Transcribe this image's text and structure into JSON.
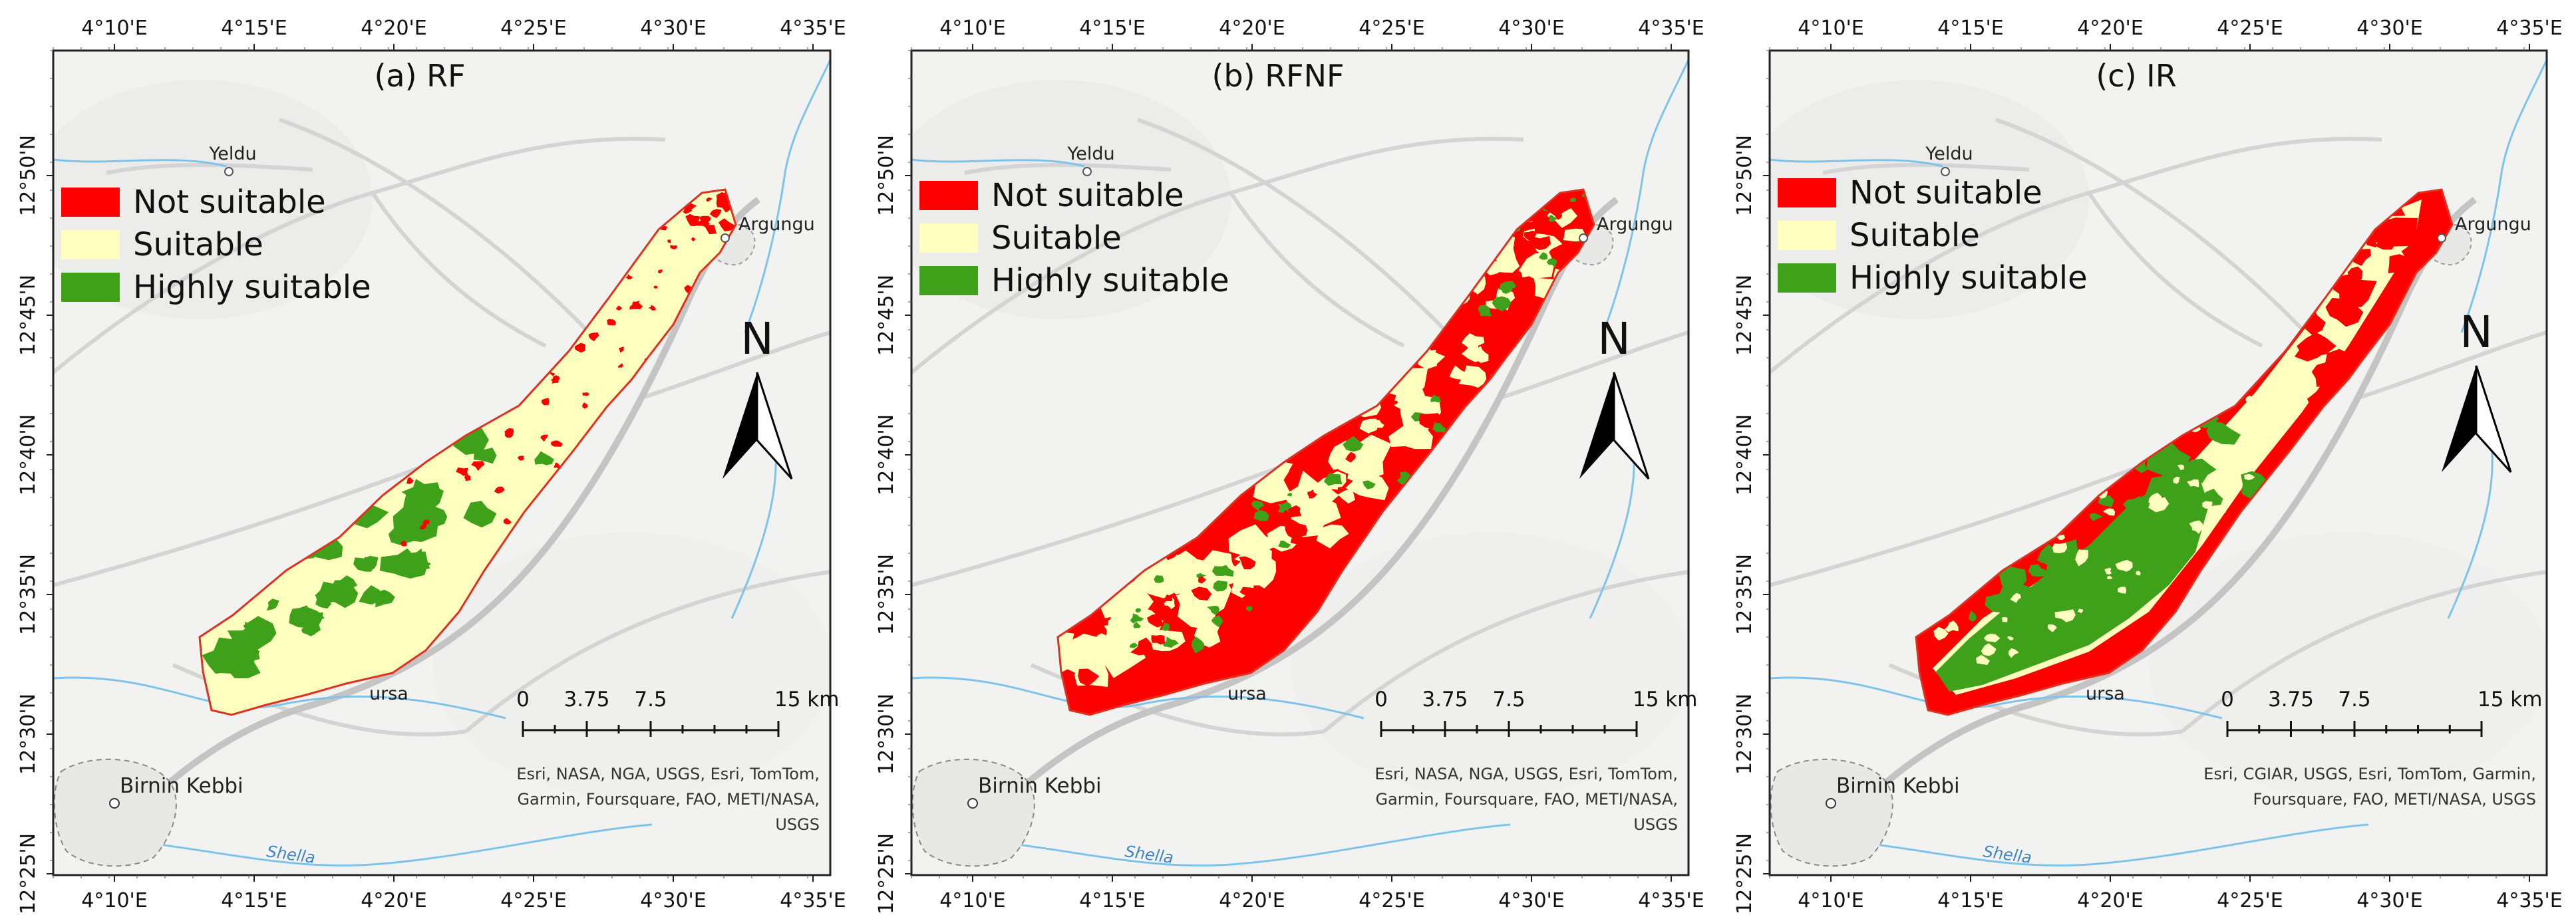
{
  "colors": {
    "not_suitable": "#ff0000",
    "suitable": "#ffffc0",
    "highly_suitable": "#3fa11a",
    "basemap": "#f2f2f0",
    "road": "#d4d4d4",
    "river": "#7ec3ea"
  },
  "axes": {
    "top_ticks": [
      "4°10'E",
      "4°15'E",
      "4°20'E",
      "4°25'E",
      "4°30'E",
      "4°35'E"
    ],
    "left_ticks": [
      "12°50'N",
      "12°45'N",
      "12°40'N",
      "12°35'N",
      "12°30'N",
      "12°25'N"
    ]
  },
  "legend": [
    {
      "label": "Not suitable",
      "color": "#ff0000"
    },
    {
      "label": "Suitable",
      "color": "#ffffc0"
    },
    {
      "label": "Highly suitable",
      "color": "#3fa11a"
    }
  ],
  "places": {
    "yeldu": "Yeldu",
    "argungu": "Argungu",
    "birnin_kebbi": "Birnin Kebbi",
    "ursa": "ursa",
    "river": "Shella"
  },
  "north_label": "N",
  "scale_bar": {
    "labels": [
      "0",
      "3.75",
      "7.5",
      "15 km"
    ]
  },
  "panels": [
    {
      "title": "(a) RF",
      "dominant": "suitable",
      "attribution": [
        "Esri, NASA, NGA, USGS, Esri, TomTom,",
        "Garmin, Foursquare, FAO, METI/NASA,",
        "USGS"
      ]
    },
    {
      "title": "(b) RFNF",
      "dominant": "not_suitable",
      "attribution": [
        "Esri, NASA, NGA, USGS, Esri, TomTom,",
        "Garmin, Foursquare, FAO, METI/NASA,",
        "USGS"
      ]
    },
    {
      "title": "(c) IR",
      "dominant": "mixed",
      "attribution": [
        "Esri, CGIAR, USGS, Esri, TomTom, Garmin,",
        "Foursquare, FAO, METI/NASA, USGS"
      ]
    }
  ]
}
